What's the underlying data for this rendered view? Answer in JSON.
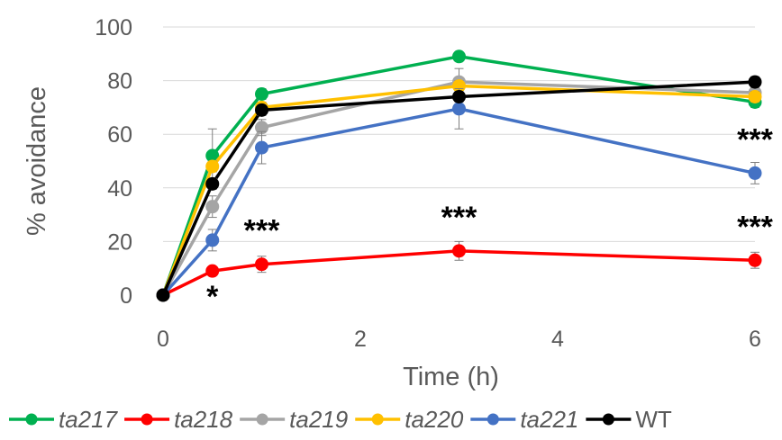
{
  "chart_data": {
    "type": "line",
    "xlabel": "Time (h)",
    "ylabel": "% avoidance",
    "xlim": [
      0,
      6
    ],
    "ylim": [
      0,
      100
    ],
    "x_ticks": [
      "0",
      "2",
      "4",
      "6"
    ],
    "y_ticks": [
      "0",
      "20",
      "40",
      "60",
      "80",
      "100"
    ],
    "grid": "horizontal",
    "legend_position": "bottom",
    "x": [
      0,
      0.5,
      1,
      3,
      6
    ],
    "series": [
      {
        "name": "ta217",
        "italic": true,
        "color": "#00B050",
        "values": [
          0,
          52,
          75,
          89,
          72
        ],
        "errors": [
          0,
          10,
          2,
          1.5,
          2
        ]
      },
      {
        "name": "ta218",
        "italic": true,
        "color": "#FF0000",
        "values": [
          0,
          9,
          11.5,
          16.5,
          13
        ],
        "errors": [
          0,
          1.5,
          3,
          3.5,
          3
        ]
      },
      {
        "name": "ta219",
        "italic": true,
        "color": "#A5A5A5",
        "values": [
          0,
          33,
          62.5,
          79.5,
          75.5
        ],
        "errors": [
          0,
          4,
          3,
          5,
          2
        ]
      },
      {
        "name": "ta220",
        "italic": true,
        "color": "#FFC000",
        "values": [
          0,
          48,
          70,
          78,
          74
        ],
        "errors": [
          0,
          2,
          2,
          2,
          2
        ]
      },
      {
        "name": "ta221",
        "italic": true,
        "color": "#4472C4",
        "values": [
          0,
          20.5,
          55,
          69.5,
          45.5
        ],
        "errors": [
          0,
          4,
          6,
          7.5,
          4
        ]
      },
      {
        "name": "WT",
        "italic": false,
        "color": "#000000",
        "values": [
          0,
          41.5,
          69,
          74,
          79.5
        ],
        "errors": [
          0,
          2,
          2,
          2,
          2
        ]
      }
    ],
    "annotations": [
      {
        "text": "*",
        "x": 0.5,
        "y": 9,
        "position": "below"
      },
      {
        "text": "***",
        "x": 1,
        "y": 11.5,
        "position": "above"
      },
      {
        "text": "***",
        "x": 3,
        "y": 16.5,
        "position": "above"
      },
      {
        "text": "***",
        "x": 6,
        "y": 13,
        "position": "above"
      },
      {
        "text": "***",
        "x": 6,
        "y": 45.5,
        "position": "above"
      }
    ]
  }
}
